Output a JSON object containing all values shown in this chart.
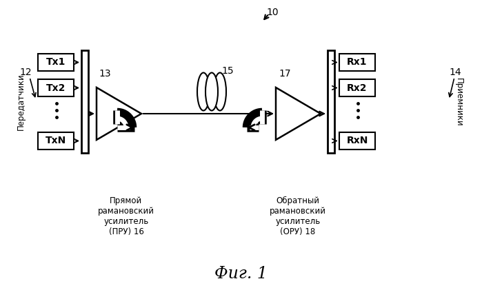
{
  "bg_color": "#ffffff",
  "title": "Фиг. 1",
  "label_10": "10",
  "label_12": "12",
  "label_13": "13",
  "label_14": "14",
  "label_15": "15",
  "label_17": "17",
  "label_pru": "Прямой\nрамановский\nусилитель\n(ПРУ) 16",
  "label_oru": "Обратный\nрамановский\nусилитель\n(ОРУ) 18",
  "label_tx": "Передатчики",
  "label_rx": "Приемники",
  "tx_labels": [
    "Tx1",
    "Tx2",
    "TxN"
  ],
  "rx_labels": [
    "Rx1",
    "Rx2",
    "RxN"
  ]
}
